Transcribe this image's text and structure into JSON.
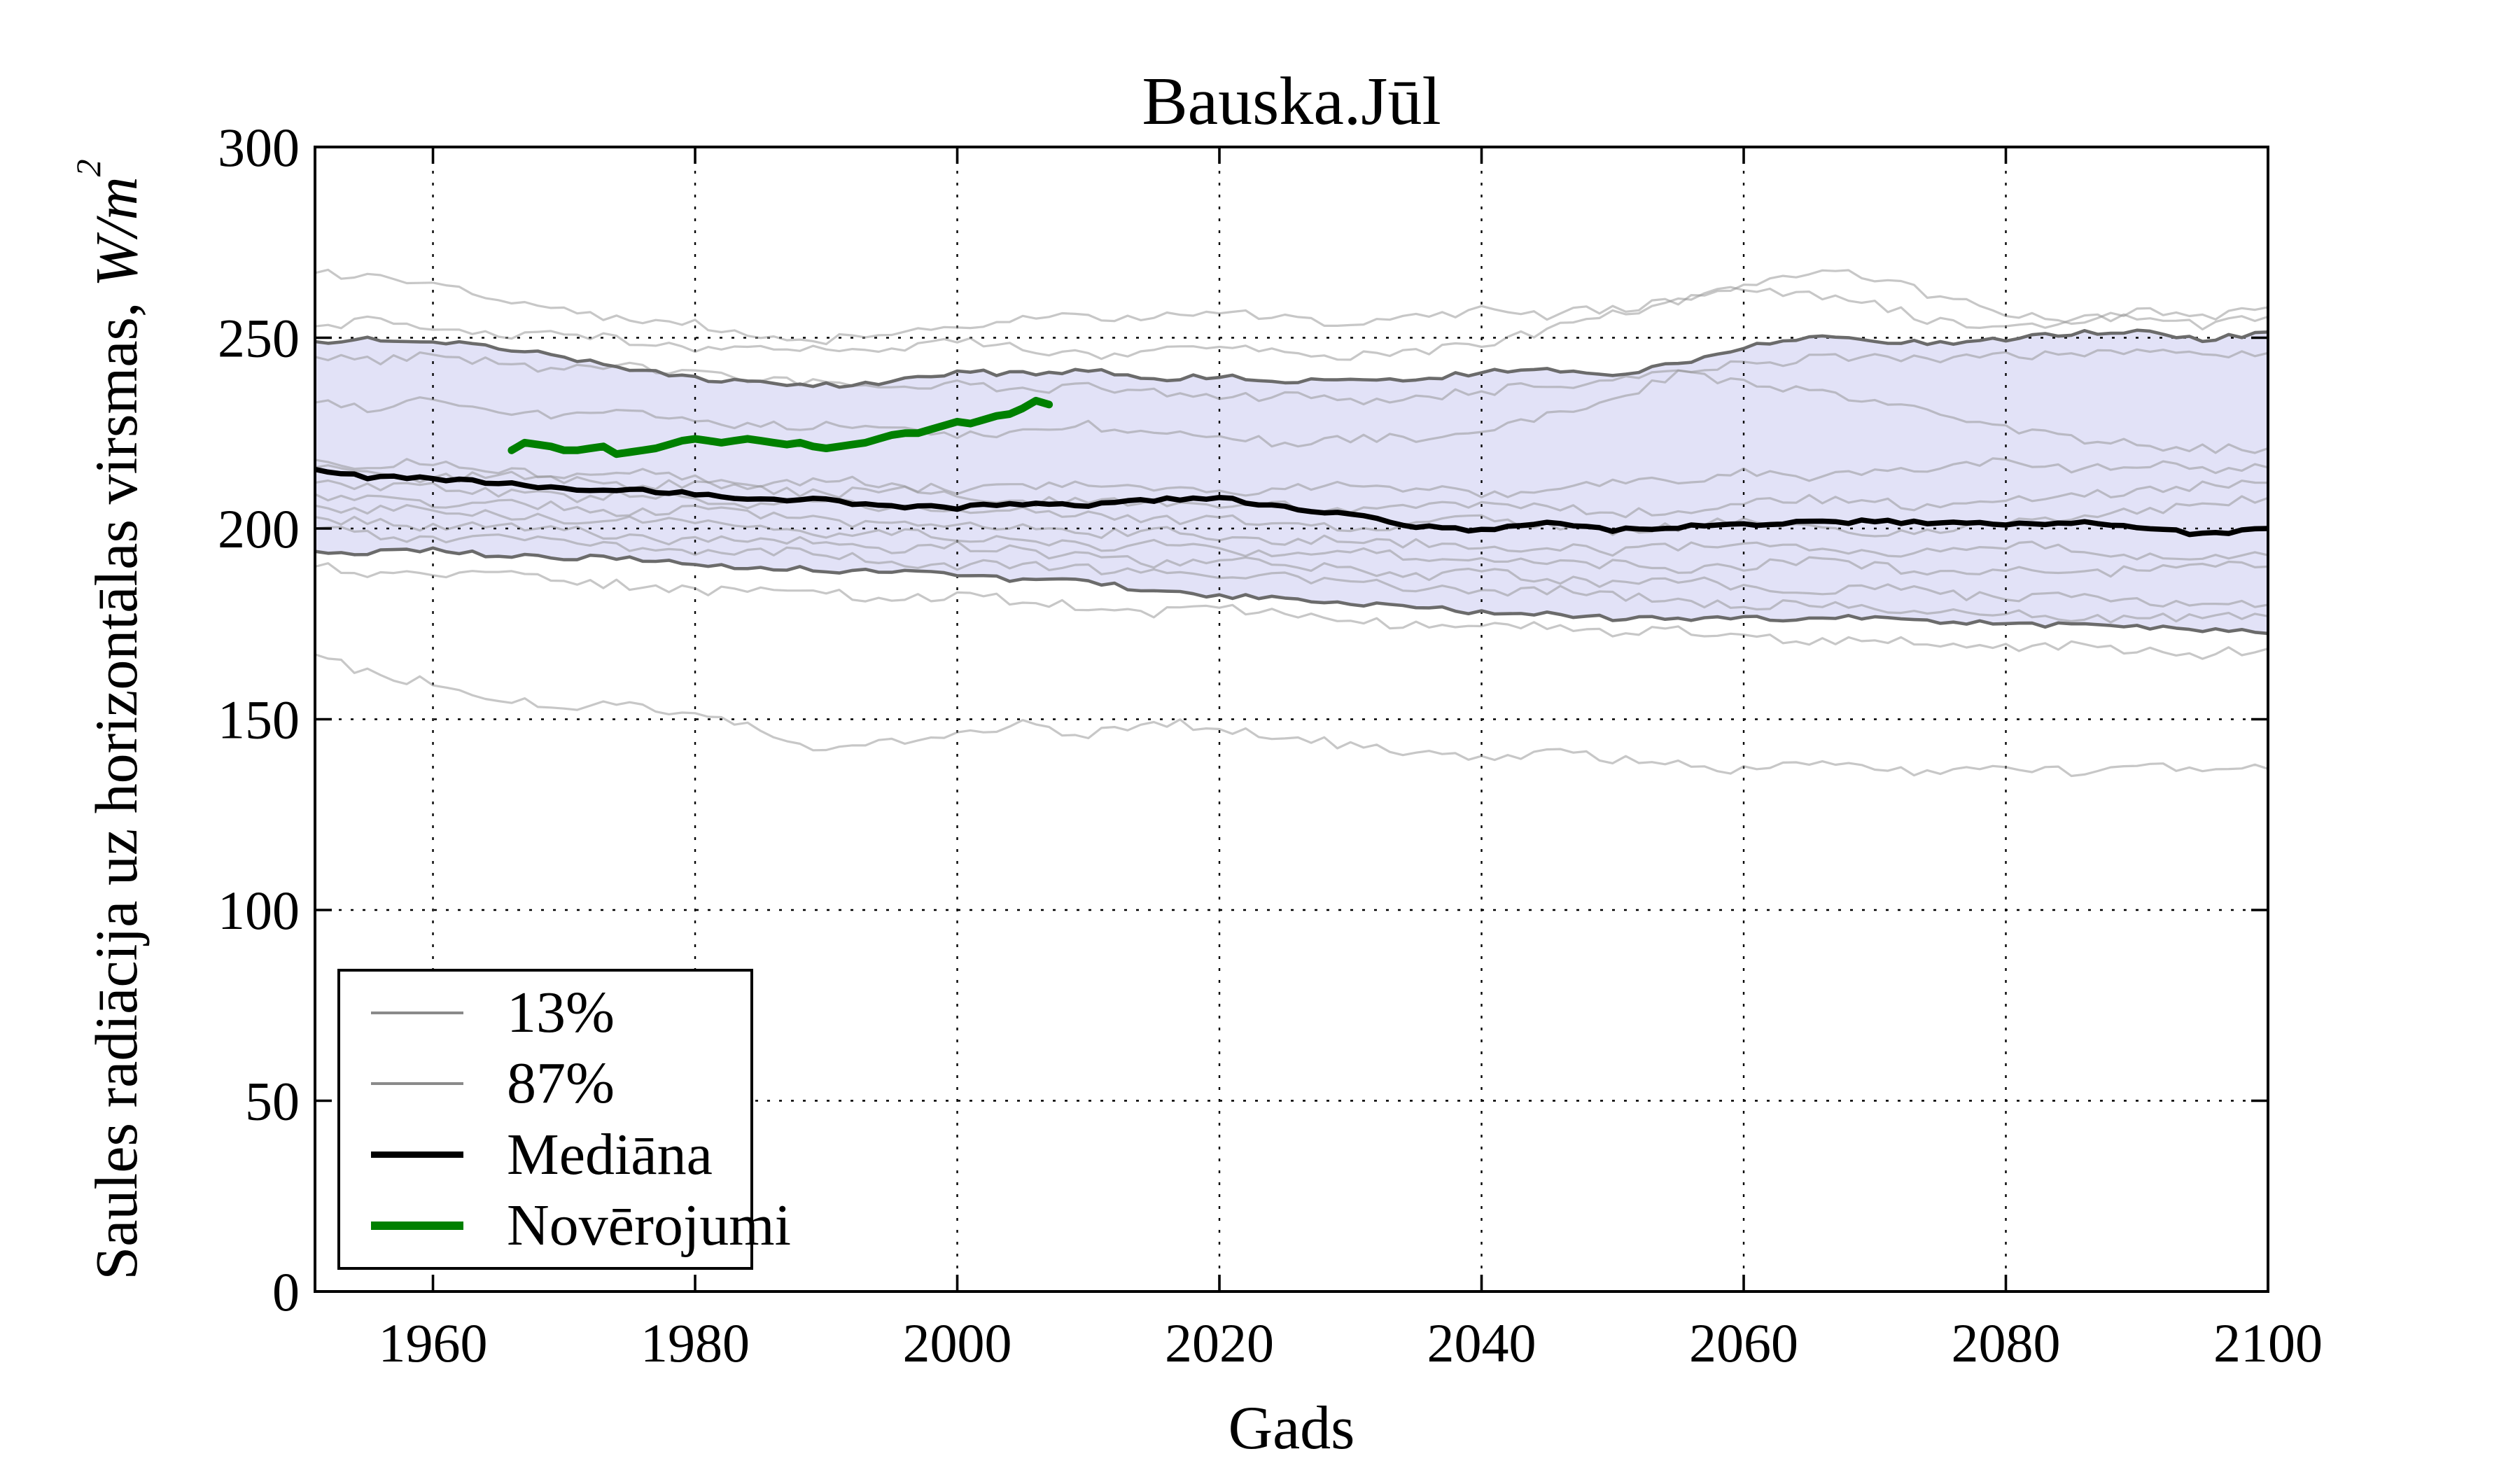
{
  "title": "Bauska.Jūl",
  "xlabel": "Gads",
  "ylabel_parts": {
    "prefix": "Saules radiācija uz horizontālas virsmas, ",
    "math": "W/m",
    "sup": "2"
  },
  "legend": {
    "items": [
      {
        "label": "13%",
        "color": "#8a8a8a",
        "width": 4
      },
      {
        "label": "87%",
        "color": "#8a8a8a",
        "width": 4
      },
      {
        "label": "Mediāna",
        "color": "#000000",
        "width": 9
      },
      {
        "label": "Novērojumi",
        "color": "#008000",
        "width": 12
      }
    ]
  },
  "chart_data": {
    "type": "line",
    "title": "Bauska.Jūl",
    "xlabel": "Gads",
    "ylabel": "Saules radiācija uz horizontālas virsmas, W/m²",
    "xlim": [
      1951,
      2100
    ],
    "ylim": [
      0,
      300
    ],
    "x_ticks": [
      1960,
      1980,
      2000,
      2020,
      2040,
      2060,
      2080,
      2100
    ],
    "y_ticks": [
      0,
      50,
      100,
      150,
      200,
      250,
      300
    ],
    "grid": "dotted-both-axes",
    "frame_color": "#000000",
    "gridline_color": "#000000",
    "band": {
      "fill": "#e2e2f7",
      "between": [
        "13%",
        "87%"
      ]
    },
    "x_anchor_years": [
      1951,
      1955,
      1960,
      1965,
      1970,
      1975,
      1980,
      1985,
      1990,
      1995,
      2000,
      2005,
      2010,
      2015,
      2020,
      2025,
      2030,
      2035,
      2040,
      2045,
      2050,
      2055,
      2060,
      2065,
      2070,
      2075,
      2080,
      2085,
      2090,
      2095,
      2100
    ],
    "series": [
      {
        "name": "13%",
        "role": "percentile-lower",
        "color": "#6b6b6b",
        "width": 4.6,
        "values": [
          194,
          193.5,
          194.5,
          193,
          192.5,
          192,
          190.5,
          190,
          189,
          188.5,
          188,
          186.5,
          186.5,
          183,
          182.5,
          181.5,
          180.5,
          179.5,
          178,
          177.5,
          176.5,
          176.5,
          177,
          176,
          177,
          175.5,
          175,
          174.5,
          174.5,
          173.5,
          172.5
        ]
      },
      {
        "name": "87%",
        "role": "percentile-upper",
        "color": "#6b6b6b",
        "width": 4.6,
        "values": [
          249,
          249.5,
          249,
          247.5,
          245,
          242,
          239.5,
          238,
          237.5,
          238.5,
          241,
          240.5,
          241.5,
          239,
          240,
          238.5,
          239,
          239,
          241,
          241.5,
          240.5,
          243,
          247.5,
          250,
          249,
          248.5,
          249.5,
          251,
          252,
          249.5,
          251.5
        ]
      },
      {
        "name": "Mediāna",
        "role": "median",
        "color": "#000000",
        "width": 7.5,
        "values": [
          215.5,
          213.5,
          213,
          212,
          210.5,
          210,
          209,
          207.5,
          207.5,
          205.5,
          205.5,
          206.5,
          206,
          207.5,
          208,
          205.5,
          203.5,
          200.5,
          199.5,
          201.5,
          199.5,
          200.5,
          201,
          201.5,
          202,
          201.5,
          201,
          201.5,
          200.5,
          198.5,
          200
        ]
      }
    ],
    "ensemble_members": {
      "color": "rgba(143,143,143,0.5)",
      "width": 3.2,
      "values": [
        [
          267,
          265.5,
          264,
          260,
          257,
          255,
          253.5,
          251,
          249.5,
          251,
          252.5,
          254.5,
          256,
          255,
          256.5,
          255,
          254,
          255.5,
          257,
          256,
          257.5,
          259.5,
          264,
          267.5,
          266,
          260.5,
          256.5,
          253.5,
          257.5,
          255,
          258
        ],
        [
          253,
          254.5,
          252,
          250.5,
          251.5,
          249,
          247.5,
          248.5,
          246.5,
          247.5,
          249,
          247,
          245.5,
          246.5,
          248,
          246.5,
          245,
          246,
          248.5,
          252,
          256,
          260,
          262.5,
          261,
          258.5,
          254,
          252.5,
          254.5,
          256,
          253.5,
          255.5
        ],
        [
          245,
          244,
          245.5,
          243.5,
          241.5,
          242.5,
          240.5,
          239,
          238,
          236.5,
          237.5,
          236,
          237,
          235.5,
          234,
          235,
          233.5,
          234.5,
          236,
          237.5,
          239,
          241,
          243,
          244.5,
          245,
          244.5,
          245.5,
          245,
          246.5,
          245.5,
          246
        ],
        [
          233,
          231.5,
          233.5,
          230.5,
          229,
          230,
          228,
          226.5,
          227.5,
          226,
          224.5,
          225.5,
          227,
          225.5,
          224,
          222.5,
          223.5,
          224,
          226,
          229.5,
          233.5,
          240.5,
          238.5,
          236,
          233,
          229.5,
          226,
          223.5,
          222,
          221,
          221
        ],
        [
          218,
          216.5,
          217.5,
          215.5,
          214,
          215,
          213.5,
          212,
          213,
          211.5,
          210,
          211,
          212.5,
          211,
          209.5,
          210.5,
          212,
          210.5,
          209,
          210,
          211.5,
          213,
          214.5,
          213,
          214.5,
          216,
          217.5,
          216,
          217,
          215.5,
          216
        ],
        [
          216,
          214.5,
          213,
          214,
          212.5,
          211,
          212,
          210.5,
          209,
          210,
          208.5,
          207,
          208,
          206.5,
          205,
          206,
          204.5,
          205.5,
          207,
          205.5,
          204,
          205,
          206.5,
          208,
          207,
          205.5,
          207,
          208.5,
          210,
          211,
          212
        ],
        [
          212,
          210.5,
          211.5,
          209.5,
          208,
          209,
          207.5,
          206,
          207,
          205.5,
          204,
          205,
          203.5,
          202,
          203,
          201.5,
          200,
          201,
          202.5,
          201,
          199.5,
          200.5,
          202,
          200.5,
          199,
          200,
          201.5,
          203,
          204.5,
          206,
          208
        ],
        [
          209,
          207.5,
          206,
          207,
          205.5,
          204,
          205,
          203.5,
          202,
          200.5,
          201.5,
          200,
          198.5,
          199.5,
          198,
          196.5,
          197.5,
          196,
          194.5,
          195.5,
          194,
          195,
          196.5,
          195,
          193.5,
          194.5,
          196,
          194.5,
          193,
          192,
          193
        ],
        [
          206,
          204.5,
          205.5,
          203.5,
          202,
          203,
          201.5,
          200,
          198.5,
          199.5,
          198,
          196.5,
          195,
          196,
          194.5,
          193,
          194,
          192.5,
          191,
          192,
          190.5,
          189,
          190,
          191.5,
          190,
          188.5,
          189.5,
          188,
          189,
          190,
          190
        ],
        [
          203,
          201.5,
          200,
          201,
          199.5,
          198,
          196.5,
          197.5,
          196,
          194.5,
          195.5,
          194,
          192.5,
          191,
          192,
          190.5,
          189,
          187.5,
          188.5,
          187,
          185.5,
          186.5,
          185,
          183.5,
          184.5,
          183,
          181.5,
          182.5,
          181,
          180,
          180
        ],
        [
          200,
          198.5,
          197,
          198,
          196.5,
          195,
          193.5,
          194.5,
          193,
          191.5,
          190,
          191,
          189.5,
          188,
          186.5,
          187.5,
          186,
          184.5,
          183,
          184,
          182.5,
          181,
          179.5,
          180.5,
          179,
          177.5,
          178.5,
          177,
          176,
          177.5,
          177
        ],
        [
          190,
          188.5,
          187,
          188,
          186.5,
          185,
          183.5,
          184.5,
          183,
          181.5,
          182.5,
          181,
          179.5,
          178,
          179,
          177.5,
          176,
          174.5,
          175.5,
          174,
          172.5,
          173.5,
          172,
          170.5,
          171.5,
          170,
          168.5,
          169.5,
          168,
          167,
          168.5
        ],
        [
          167,
          162,
          159.5,
          155.5,
          153,
          154.5,
          150.5,
          147.5,
          142,
          144,
          146.5,
          148.5,
          146,
          149.5,
          147.5,
          145.5,
          143,
          141.5,
          140,
          141.5,
          139.5,
          138,
          136.5,
          138,
          137,
          135.5,
          137.5,
          136,
          138.5,
          136.5,
          137
        ]
      ]
    },
    "observations": {
      "name": "Novērojumi",
      "color": "#008000",
      "width": 11,
      "years": [
        1966,
        1967,
        1968,
        1969,
        1970,
        1971,
        1972,
        1973,
        1974,
        1975,
        1976,
        1977,
        1978,
        1979,
        1980,
        1981,
        1982,
        1983,
        1984,
        1985,
        1986,
        1987,
        1988,
        1989,
        1990,
        1991,
        1992,
        1993,
        1994,
        1995,
        1996,
        1997,
        1998,
        1999,
        2000,
        2001,
        2002,
        2003,
        2004,
        2005,
        2006,
        2007
      ],
      "values": [
        220.5,
        222.5,
        222,
        221.5,
        220.5,
        220.5,
        221,
        221.5,
        219.5,
        220,
        220.5,
        221,
        222,
        223,
        223.5,
        223,
        222.5,
        223,
        223.5,
        223,
        222.5,
        222,
        222.5,
        221.5,
        221,
        221.5,
        222,
        222.5,
        223.5,
        224.5,
        225,
        225,
        226,
        227,
        228,
        227.5,
        228.5,
        229.5,
        230,
        231.5,
        233.5,
        232.5
      ]
    },
    "jitter": {
      "ensemble": 1.3,
      "percentile": 0.7,
      "median": 0.5
    }
  }
}
